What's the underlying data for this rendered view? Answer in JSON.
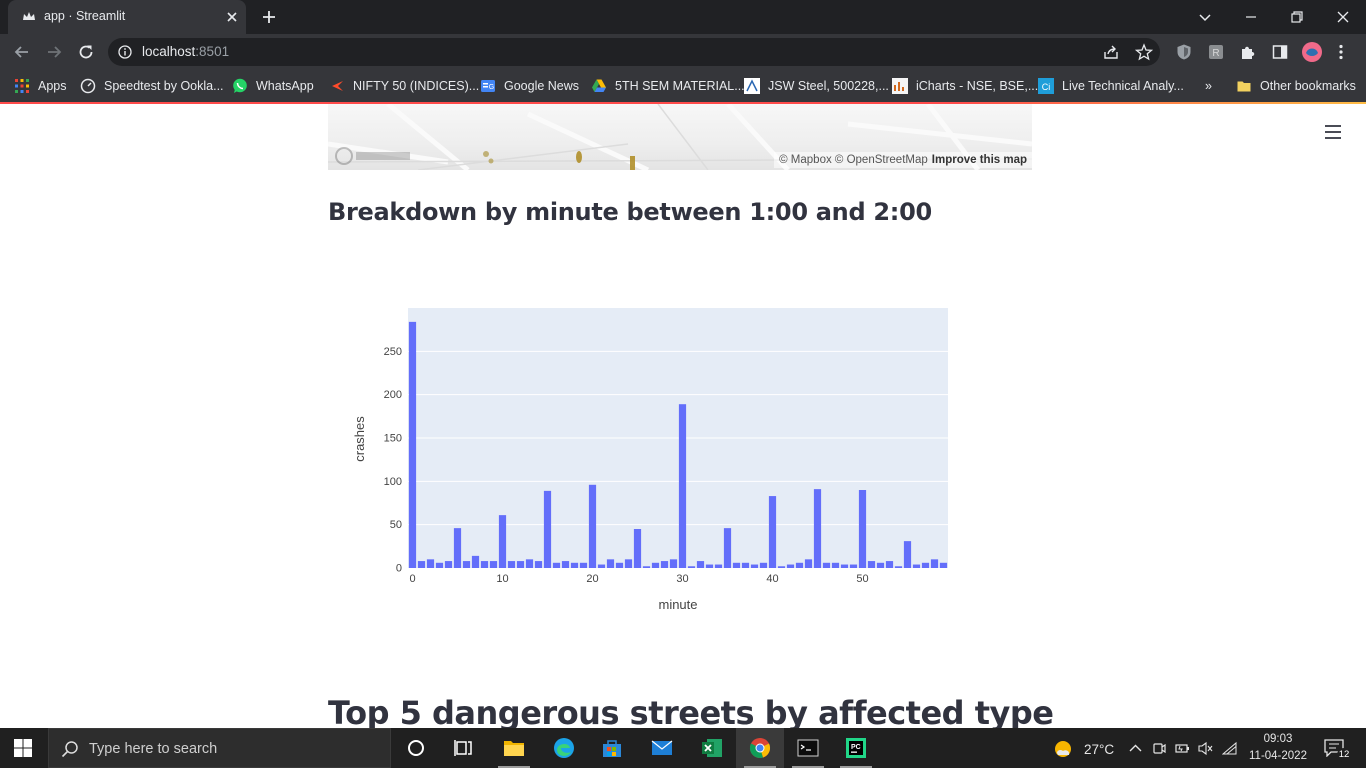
{
  "browser": {
    "tab_title": "app · Streamlit",
    "url_host": "localhost",
    "url_port": ":8501",
    "bookmarks": [
      {
        "label": "Apps",
        "icon": "apps-grid-icon"
      },
      {
        "label": "Speedtest by Ookla...",
        "icon": "speedtest-icon"
      },
      {
        "label": "WhatsApp",
        "icon": "whatsapp-icon"
      },
      {
        "label": "NIFTY 50 (INDICES)...",
        "icon": "nifty-icon"
      },
      {
        "label": "Google News",
        "icon": "google-news-icon"
      },
      {
        "label": "5TH SEM MATERIAL...",
        "icon": "google-drive-icon"
      },
      {
        "label": "JSW Steel, 500228,...",
        "icon": "jsw-icon"
      },
      {
        "label": "iCharts - NSE, BSE,...",
        "icon": "icharts-icon"
      },
      {
        "label": "Live Technical Analy...",
        "icon": "ci-icon"
      },
      {
        "label": "»",
        "icon": "overflow-icon"
      },
      {
        "label": "Other bookmarks",
        "icon": "folder-icon"
      }
    ]
  },
  "page": {
    "map_attribution": "© Mapbox © OpenStreetMap",
    "map_improve": "Improve this map",
    "heading_breakdown": "Breakdown by minute between 1:00 and 2:00",
    "heading_top5": "Top 5 dangerous streets by affected type"
  },
  "chart_data": {
    "type": "bar",
    "title": "",
    "xlabel": "minute",
    "ylabel": "crashes",
    "x": [
      0,
      1,
      2,
      3,
      4,
      5,
      6,
      7,
      8,
      9,
      10,
      11,
      12,
      13,
      14,
      15,
      16,
      17,
      18,
      19,
      20,
      21,
      22,
      23,
      24,
      25,
      26,
      27,
      28,
      29,
      30,
      31,
      32,
      33,
      34,
      35,
      36,
      37,
      38,
      39,
      40,
      41,
      42,
      43,
      44,
      45,
      46,
      47,
      48,
      49,
      50,
      51,
      52,
      53,
      54,
      55,
      56,
      57,
      58,
      59
    ],
    "values": [
      284,
      8,
      10,
      6,
      8,
      46,
      8,
      14,
      8,
      8,
      61,
      8,
      8,
      10,
      8,
      89,
      6,
      8,
      6,
      6,
      96,
      4,
      10,
      6,
      10,
      45,
      2,
      6,
      8,
      10,
      189,
      2,
      8,
      4,
      4,
      46,
      6,
      6,
      4,
      6,
      83,
      2,
      4,
      6,
      10,
      91,
      6,
      6,
      4,
      4,
      90,
      8,
      6,
      8,
      2,
      31,
      4,
      6,
      10,
      6
    ],
    "xticks": [
      0,
      10,
      20,
      30,
      40,
      50
    ],
    "yticks": [
      0,
      50,
      100,
      150,
      200,
      250
    ],
    "xlim": [
      -0.5,
      59.5
    ],
    "ylim": [
      0,
      300
    ],
    "grid": true,
    "colors": {
      "bar": "#636efa",
      "plot_bg": "#e5ecf6"
    }
  },
  "taskbar": {
    "search_placeholder": "Type here to search",
    "weather_temp": "27°C",
    "time": "09:03",
    "date": "11-04-2022",
    "notification_count": "12",
    "apps": [
      "cortana-icon",
      "task-view-icon",
      "file-explorer-icon",
      "edge-icon",
      "microsoft-store-icon",
      "mail-icon",
      "excel-icon",
      "chrome-icon",
      "terminal-icon",
      "pycharm-icon"
    ]
  }
}
